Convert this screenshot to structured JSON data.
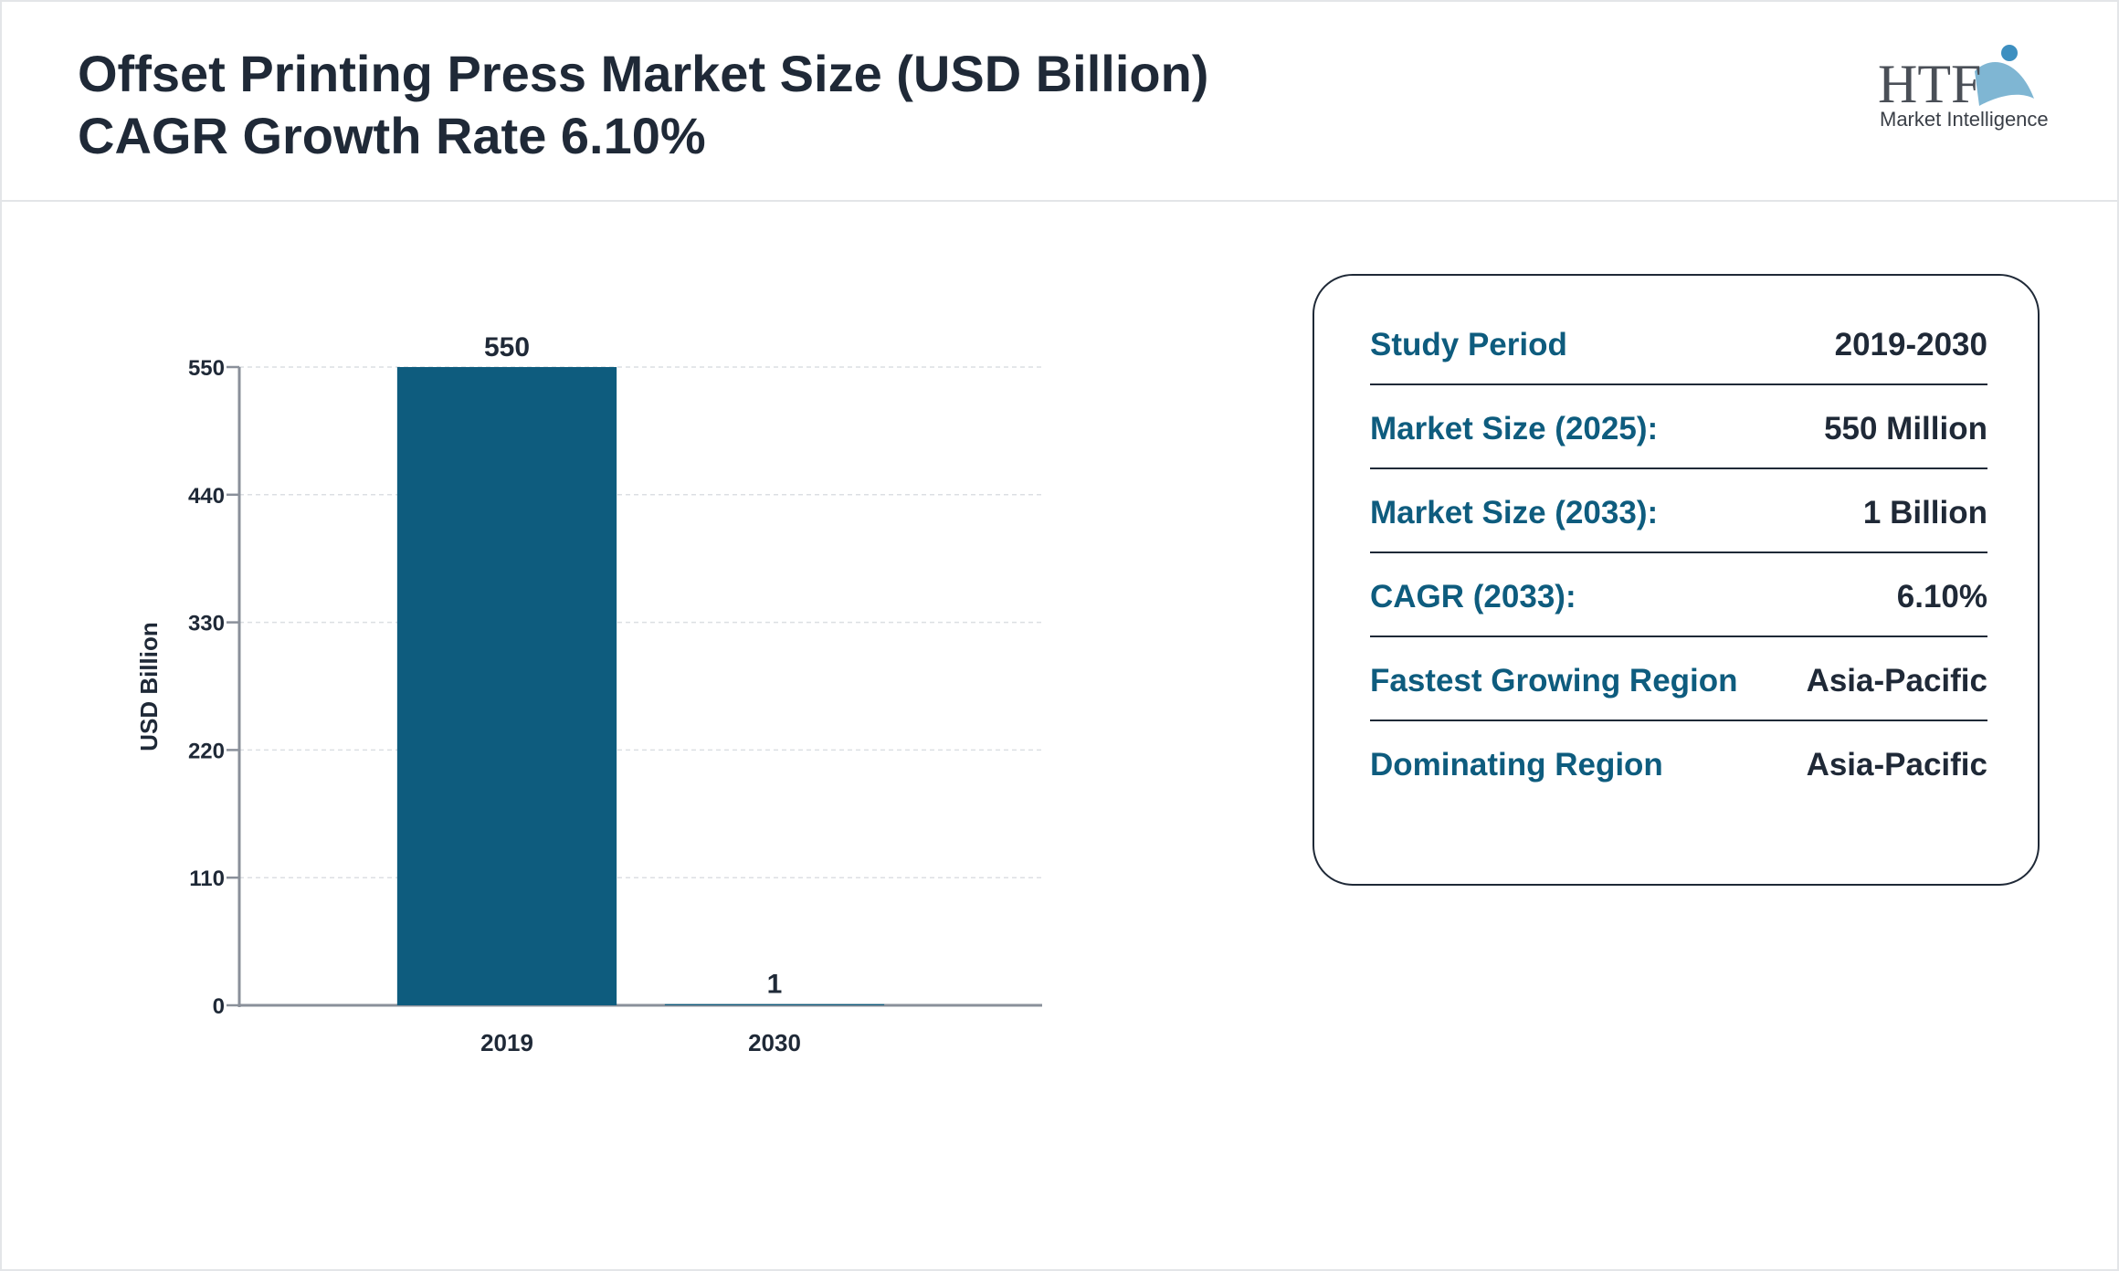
{
  "header": {
    "title": "Offset Printing Press Market Size (USD Billion)",
    "subtitle": "CAGR Growth Rate 6.10%"
  },
  "logo": {
    "mark": "HTF",
    "tagline": "Market Intelligence"
  },
  "chart_data": {
    "type": "bar",
    "y_label": "USD Billion",
    "categories": [
      "2019",
      "2030"
    ],
    "values": [
      550,
      1
    ],
    "color": "#0e5c7e",
    "ylim": [
      0,
      550
    ],
    "yticks": [
      0,
      110,
      220,
      330,
      440,
      550
    ],
    "grid": true
  },
  "info": {
    "rows": [
      [
        "Study Period",
        "2019-2030"
      ],
      [
        "Market Size (2025):",
        "550 Million"
      ],
      [
        "Market Size (2033):",
        "1 Billion"
      ],
      [
        "CAGR (2033):",
        "6.10%"
      ],
      [
        "Fastest Growing Region",
        "Asia-Pacific"
      ],
      [
        "Dominating Region",
        "Asia-Pacific"
      ]
    ]
  }
}
